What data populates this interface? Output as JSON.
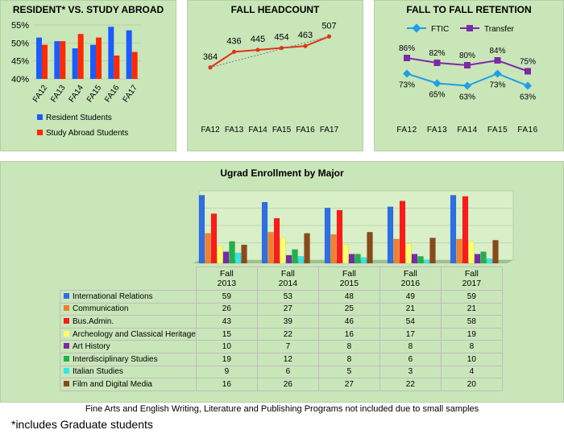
{
  "footnote_programs": "Fine Arts and English Writing, Literature and Publishing Programs not included due to small samples",
  "footnote_graduate": "*includes Graduate students",
  "chart_data": [
    {
      "id": "resident",
      "type": "bar",
      "title": "RESIDENT* VS. STUDY ABROAD",
      "categories": [
        "FA12",
        "FA13",
        "FA14",
        "FA15",
        "FA16",
        "FA17"
      ],
      "series": [
        {
          "name": "Resident Students",
          "color": "#1a5cff",
          "values": [
            51.5,
            50.5,
            48.5,
            49.5,
            54.5,
            53.5
          ]
        },
        {
          "name": "Study Abroad Students",
          "color": "#ff2a00",
          "values": [
            49.5,
            50.5,
            52.5,
            51.5,
            46.5,
            47.5
          ]
        }
      ],
      "ylim": [
        40,
        55
      ],
      "yticks": [
        "40%",
        "45%",
        "50%",
        "55%"
      ],
      "ytick_values": [
        40,
        45,
        50,
        55
      ]
    },
    {
      "id": "headcount",
      "type": "line",
      "title": "FALL HEADCOUNT",
      "categories": [
        "FA12",
        "FA13",
        "FA14",
        "FA15",
        "FA16",
        "FA17"
      ],
      "values": [
        364,
        436,
        445,
        454,
        463,
        507
      ],
      "ylim": [
        300,
        560
      ],
      "color": "#e0341a"
    },
    {
      "id": "retention",
      "type": "line",
      "title": "FALL TO FALL RETENTION",
      "categories": [
        "FA12",
        "FA13",
        "FA14",
        "FA15",
        "FA16"
      ],
      "series": [
        {
          "name": "FTIC",
          "color": "#1f9fe6",
          "values": [
            73,
            65,
            63,
            73,
            63
          ],
          "labels": [
            "73%",
            "65%",
            "63%",
            "73%",
            "63%"
          ]
        },
        {
          "name": "Transfer",
          "color": "#7a2aa8",
          "values": [
            86,
            82,
            80,
            84,
            75
          ],
          "labels": [
            "86%",
            "82%",
            "80%",
            "84%",
            "75%"
          ]
        }
      ],
      "ylim": [
        40,
        100
      ]
    },
    {
      "id": "major",
      "type": "bar",
      "title": "Ugrad Enrollment by Major",
      "categories": [
        "Fall 2013",
        "Fall 2014",
        "Fall 2015",
        "Fall 2016",
        "Fall 2017"
      ],
      "category_lines": [
        [
          "Fall",
          "2013"
        ],
        [
          "Fall",
          "2014"
        ],
        [
          "Fall",
          "2015"
        ],
        [
          "Fall",
          "2016"
        ],
        [
          "Fall",
          "2017"
        ]
      ],
      "series": [
        {
          "name": "International Relations",
          "color": "#2e6fe6",
          "values": [
            59,
            53,
            48,
            49,
            59
          ]
        },
        {
          "name": "Communication",
          "color": "#f08030",
          "values": [
            26,
            27,
            25,
            21,
            21
          ]
        },
        {
          "name": "Bus.Admin.",
          "color": "#ff1a1a",
          "values": [
            43,
            39,
            46,
            54,
            58
          ]
        },
        {
          "name": "Archeology and Classical Heritage",
          "color": "#ffff66",
          "values": [
            15,
            22,
            16,
            17,
            19
          ]
        },
        {
          "name": "Art History",
          "color": "#7a2aa8",
          "values": [
            10,
            7,
            8,
            8,
            8
          ]
        },
        {
          "name": "Interdisciplinary Studies",
          "color": "#22b04a",
          "values": [
            19,
            12,
            8,
            6,
            10
          ]
        },
        {
          "name": "Italian Studies",
          "color": "#33e6e6",
          "values": [
            9,
            6,
            5,
            3,
            4
          ]
        },
        {
          "name": "Film and Digital Media",
          "color": "#8a4a1a",
          "values": [
            16,
            26,
            27,
            22,
            20
          ]
        }
      ],
      "ylim": [
        0,
        60
      ]
    }
  ]
}
